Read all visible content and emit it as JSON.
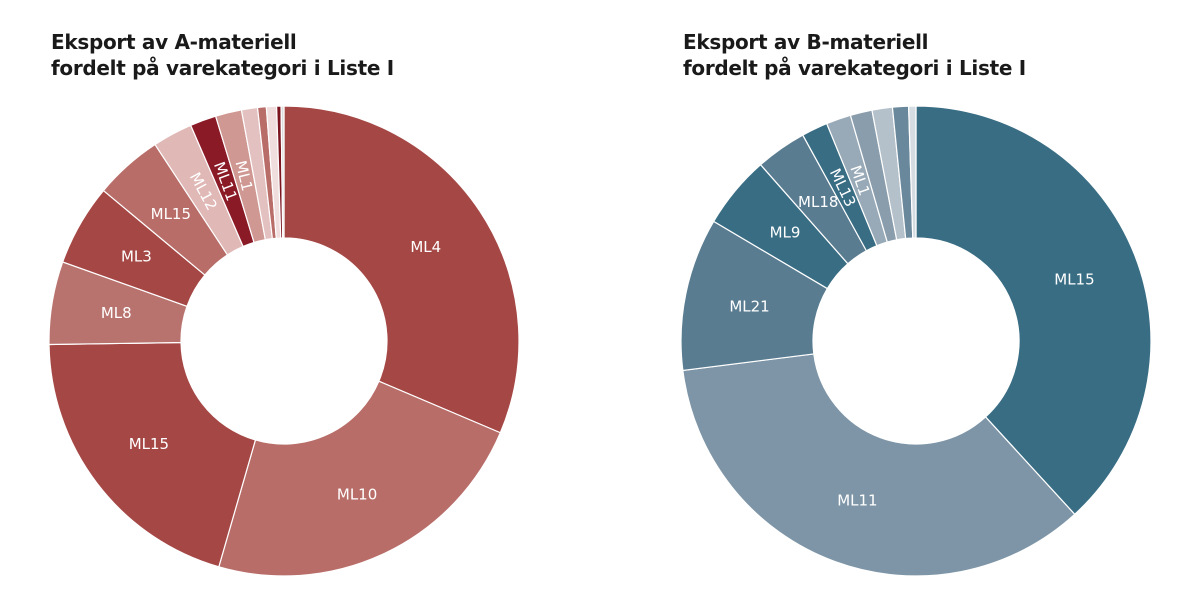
{
  "chart_data": [
    {
      "type": "pie",
      "variant": "donut",
      "title": [
        "Eksport av A-materiell",
        "fordelt på varekategori i Liste I"
      ],
      "unit": "percent (estimated)",
      "slices": [
        {
          "label": "ML4",
          "value": 31.4,
          "color": "#a54745"
        },
        {
          "label": "ML10",
          "value": 23.1,
          "color": "#b86d68"
        },
        {
          "label": "ML15",
          "value": 20.3,
          "color": "#a54745"
        },
        {
          "label": "ML8",
          "value": 5.7,
          "color": "#b9736e"
        },
        {
          "label": "ML3",
          "value": 5.6,
          "color": "#a54745"
        },
        {
          "label": "ML15",
          "value": 4.7,
          "color": "#b86d68"
        },
        {
          "label": "ML12",
          "value": 2.75,
          "color": "#e0b8b6"
        },
        {
          "label": "ML11",
          "value": 1.8,
          "color": "#8b1a27"
        },
        {
          "label": "ML1",
          "value": 1.8,
          "color": "#cf9893"
        },
        {
          "label": "",
          "value": 1.1,
          "color": "#e3c1c0"
        },
        {
          "label": "",
          "value": 0.6,
          "color": "#b86d68"
        },
        {
          "label": "",
          "value": 0.7,
          "color": "#f0dede"
        },
        {
          "label": "",
          "value": 0.3,
          "color": "#7a1520"
        },
        {
          "label": "",
          "value": 0.2,
          "color": "#dddddd"
        }
      ]
    },
    {
      "type": "pie",
      "variant": "donut",
      "title": [
        "Eksport av B-materiell",
        "fordelt på varekategori i Liste I"
      ],
      "unit": "percent (estimated)",
      "slices": [
        {
          "label": "ML15",
          "value": 38.2,
          "color": "#386d84"
        },
        {
          "label": "ML11",
          "value": 34.8,
          "color": "#7d95a6"
        },
        {
          "label": "ML21",
          "value": 10.5,
          "color": "#5a7c91"
        },
        {
          "label": "ML9",
          "value": 5.0,
          "color": "#386d84"
        },
        {
          "label": "ML18",
          "value": 3.5,
          "color": "#5a7c91"
        },
        {
          "label": "ML13",
          "value": 1.8,
          "color": "#386d84"
        },
        {
          "label": "ML1",
          "value": 1.7,
          "color": "#98aab8"
        },
        {
          "label": "",
          "value": 1.5,
          "color": "#8a9dac"
        },
        {
          "label": "",
          "value": 1.4,
          "color": "#b4c1cb"
        },
        {
          "label": "",
          "value": 1.1,
          "color": "#6a889b"
        },
        {
          "label": "",
          "value": 0.5,
          "color": "#d5dde3"
        }
      ]
    }
  ]
}
